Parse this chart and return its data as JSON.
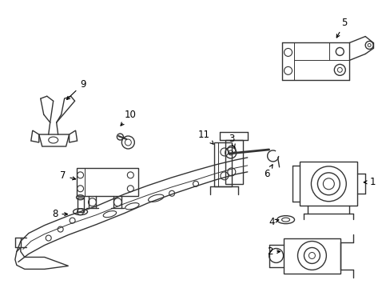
{
  "bg_color": "#ffffff",
  "line_color": "#333333",
  "lw": 1.0,
  "fig_width": 4.89,
  "fig_height": 3.6,
  "dpi": 100
}
